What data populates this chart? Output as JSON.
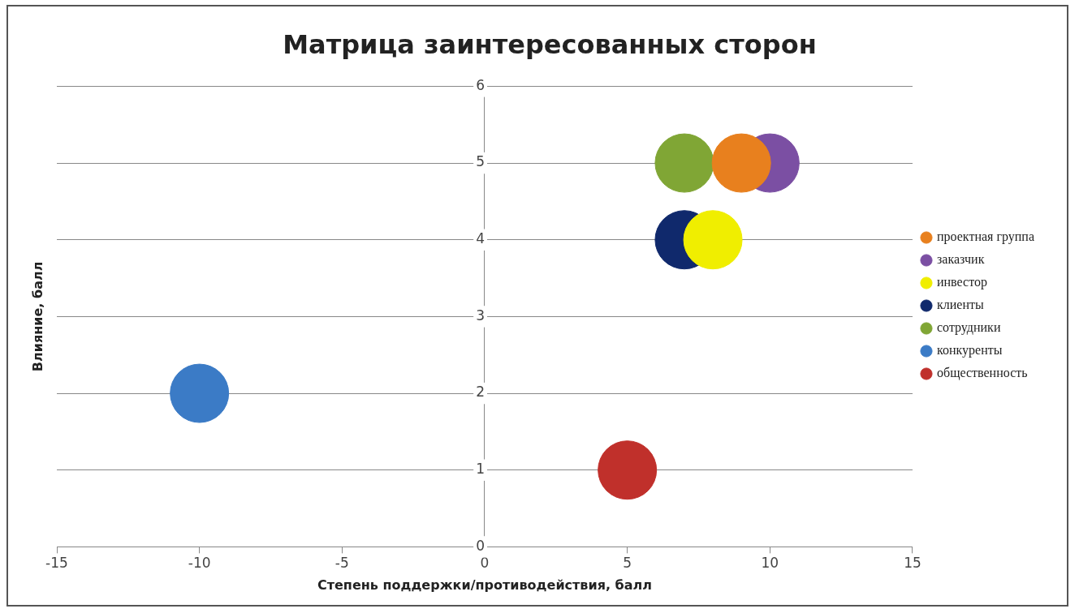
{
  "chart_data": {
    "type": "bubble",
    "title": "Матрица заинтересованных сторон",
    "xlabel": "Степень поддержки/противодействия, балл",
    "ylabel": "Влияние, балл",
    "xlim": [
      -15,
      15
    ],
    "xticks": [
      -15,
      -10,
      -5,
      0,
      5,
      10,
      15
    ],
    "ylim": [
      0,
      6
    ],
    "yticks": [
      0,
      1,
      2,
      3,
      4,
      5,
      6
    ],
    "grid": "y",
    "legend": "right",
    "marker": "circle",
    "series": [
      {
        "name": "проектная группа",
        "color": "#e8801e",
        "x": [
          9
        ],
        "values": [
          5
        ],
        "sizes": [
          1
        ]
      },
      {
        "name": "заказчик",
        "color": "#7b4fa3",
        "x": [
          10
        ],
        "values": [
          5
        ],
        "sizes": [
          1
        ]
      },
      {
        "name": "инвестор",
        "color": "#f0ee00",
        "x": [
          8
        ],
        "values": [
          4
        ],
        "sizes": [
          1
        ]
      },
      {
        "name": "клиенты",
        "color": "#10296c",
        "x": [
          7
        ],
        "values": [
          4
        ],
        "sizes": [
          1
        ]
      },
      {
        "name": "сотрудники",
        "color": "#80a635",
        "x": [
          7
        ],
        "values": [
          5
        ],
        "sizes": [
          1
        ]
      },
      {
        "name": "конкуренты",
        "color": "#3b7bc6",
        "x": [
          -10
        ],
        "values": [
          2
        ],
        "sizes": [
          1
        ]
      },
      {
        "name": "общественность",
        "color": "#c0302b",
        "x": [
          5
        ],
        "values": [
          1
        ],
        "sizes": [
          1
        ]
      }
    ]
  }
}
